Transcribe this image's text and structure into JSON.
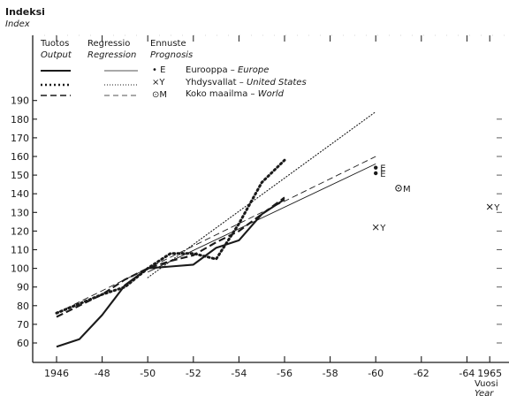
{
  "chart_data": {
    "type": "line",
    "ylabel": "Indeksi",
    "ylabel_en": "Index",
    "xlabel": "Vuosi",
    "xlabel_en": "Year",
    "xlim": [
      1945.5,
      1965.2
    ],
    "ylim": [
      52,
      190
    ],
    "x_ticks": [
      {
        "value": 1946,
        "label": "1946"
      },
      {
        "value": 1948,
        "label": "-48"
      },
      {
        "value": 1950,
        "label": "-50"
      },
      {
        "value": 1952,
        "label": "-52"
      },
      {
        "value": 1954,
        "label": "-54"
      },
      {
        "value": 1956,
        "label": "-56"
      },
      {
        "value": 1958,
        "label": "-58"
      },
      {
        "value": 1960,
        "label": "-60"
      },
      {
        "value": 1962,
        "label": "-62"
      },
      {
        "value": 1964,
        "label": "-64"
      },
      {
        "value": 1965,
        "label": "1965"
      }
    ],
    "y_ticks": [
      60,
      70,
      80,
      90,
      100,
      110,
      120,
      130,
      140,
      150,
      160,
      170,
      180,
      190
    ],
    "grid": false,
    "legend": {
      "position": "top-left",
      "headers": [
        {
          "fi": "Tuotos",
          "en": "Output"
        },
        {
          "fi": "Regressio",
          "en": "Regression"
        },
        {
          "fi": "Ennuste",
          "en": "Prognosis"
        }
      ],
      "entries": [
        {
          "symbol": "• E",
          "name_fi": "Eurooppa",
          "name_en": "Europe"
        },
        {
          "symbol": "×Y",
          "name_fi": "Yhdysvallat",
          "name_en": "United States"
        },
        {
          "symbol": "⊙M",
          "name_fi": "Koko maailma",
          "name_en": "World"
        }
      ]
    },
    "output_series": [
      {
        "key": "europe",
        "style": "solid",
        "x": [
          1946,
          1947,
          1948,
          1949,
          1950,
          1951,
          1952,
          1953,
          1954,
          1955,
          1956
        ],
        "y": [
          58,
          62,
          75,
          91,
          100,
          101,
          102,
          111,
          115,
          129,
          137
        ]
      },
      {
        "key": "usa",
        "style": "dotted",
        "x": [
          1946,
          1947,
          1948,
          1949,
          1950,
          1951,
          1952,
          1953,
          1954,
          1955,
          1956
        ],
        "y": [
          76,
          81,
          86,
          90,
          100,
          108,
          108,
          105,
          124,
          146,
          158
        ]
      },
      {
        "key": "world",
        "style": "dashed",
        "x": [
          1946,
          1947,
          1948,
          1949,
          1950,
          1951,
          1952,
          1953,
          1954,
          1955,
          1956
        ],
        "y": [
          74,
          80,
          86,
          94,
          100,
          104,
          107,
          114,
          120,
          129,
          138
        ]
      }
    ],
    "regression_series": [
      {
        "key": "europe",
        "style": "solid-thin",
        "x": [
          1950,
          1960
        ],
        "y": [
          98,
          156
        ]
      },
      {
        "key": "usa",
        "style": "dotted-thin",
        "x": [
          1950,
          1960
        ],
        "y": [
          95,
          184
        ]
      },
      {
        "key": "world",
        "style": "dashed-thin",
        "x": [
          1946,
          1960
        ],
        "y": [
          76,
          160
        ]
      }
    ],
    "prognosis_points": [
      {
        "key": "europe",
        "symbol": "•",
        "label": "E",
        "x": 1960,
        "y": 154
      },
      {
        "key": "europe",
        "symbol": "•",
        "label": "E",
        "x": 1960,
        "y": 151
      },
      {
        "key": "usa",
        "symbol": "×",
        "label": "Y",
        "x": 1960,
        "y": 122
      },
      {
        "key": "usa",
        "symbol": "×",
        "label": "Y",
        "x": 1965,
        "y": 133
      },
      {
        "key": "world",
        "symbol": "⊙",
        "label": "M",
        "x": 1961,
        "y": 143
      }
    ]
  }
}
